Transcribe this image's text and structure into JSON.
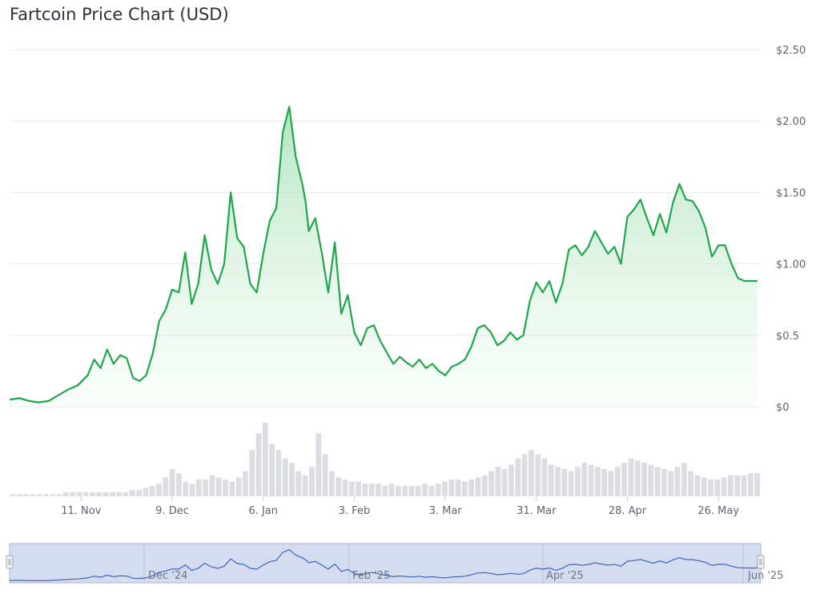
{
  "title": "Fartcoin Price Chart (USD)",
  "chart_data": {
    "type": "area",
    "title": "Fartcoin Price Chart (USD)",
    "xlabel": "",
    "ylabel": "",
    "ylim": [
      0,
      2.5
    ],
    "y_ticks": [
      {
        "value": 0,
        "label": "$0"
      },
      {
        "value": 0.5,
        "label": "$0.5"
      },
      {
        "value": 1.0,
        "label": "$1.00"
      },
      {
        "value": 1.5,
        "label": "$1.50"
      },
      {
        "value": 2.0,
        "label": "$2.00"
      },
      {
        "value": 2.5,
        "label": "$2.50"
      }
    ],
    "x_ticks": [
      {
        "date": "2024-11-11",
        "label": "11. Nov"
      },
      {
        "date": "2024-12-09",
        "label": "9. Dec"
      },
      {
        "date": "2025-01-06",
        "label": "6. Jan"
      },
      {
        "date": "2025-02-03",
        "label": "3. Feb"
      },
      {
        "date": "2025-03-03",
        "label": "3. Mar"
      },
      {
        "date": "2025-03-31",
        "label": "31. Mar"
      },
      {
        "date": "2025-04-28",
        "label": "28. Apr"
      },
      {
        "date": "2025-05-26",
        "label": "26. May"
      }
    ],
    "x_range": [
      "2024-10-20",
      "2025-06-08"
    ],
    "grid": true,
    "line_color": "#1ea84a",
    "series": [
      {
        "x": [
          "2024-10-20",
          "2024-10-23",
          "2024-10-26",
          "2024-10-29",
          "2024-11-01",
          "2024-11-04",
          "2024-11-07",
          "2024-11-10",
          "2024-11-13",
          "2024-11-15",
          "2024-11-17",
          "2024-11-19",
          "2024-11-21",
          "2024-11-23",
          "2024-11-25",
          "2024-11-27",
          "2024-11-29",
          "2024-12-01",
          "2024-12-03",
          "2024-12-05",
          "2024-12-07",
          "2024-12-09",
          "2024-12-11",
          "2024-12-13",
          "2024-12-15",
          "2024-12-17",
          "2024-12-19",
          "2024-12-21",
          "2024-12-23",
          "2024-12-25",
          "2024-12-27",
          "2024-12-29",
          "2024-12-31",
          "2025-01-02",
          "2025-01-04",
          "2025-01-06",
          "2025-01-08",
          "2025-01-10",
          "2025-01-12",
          "2025-01-14",
          "2025-01-16",
          "2025-01-18",
          "2025-01-19",
          "2025-01-20",
          "2025-01-22",
          "2025-01-24",
          "2025-01-26",
          "2025-01-28",
          "2025-01-30",
          "2025-02-01",
          "2025-02-03",
          "2025-02-05",
          "2025-02-07",
          "2025-02-09",
          "2025-02-11",
          "2025-02-13",
          "2025-02-15",
          "2025-02-17",
          "2025-02-19",
          "2025-02-21",
          "2025-02-23",
          "2025-02-25",
          "2025-02-27",
          "2025-03-01",
          "2025-03-03",
          "2025-03-05",
          "2025-03-07",
          "2025-03-09",
          "2025-03-11",
          "2025-03-13",
          "2025-03-15",
          "2025-03-17",
          "2025-03-19",
          "2025-03-21",
          "2025-03-23",
          "2025-03-25",
          "2025-03-27",
          "2025-03-29",
          "2025-03-31",
          "2025-04-02",
          "2025-04-04",
          "2025-04-06",
          "2025-04-08",
          "2025-04-10",
          "2025-04-12",
          "2025-04-14",
          "2025-04-16",
          "2025-04-18",
          "2025-04-20",
          "2025-04-22",
          "2025-04-24",
          "2025-04-26",
          "2025-04-28",
          "2025-04-30",
          "2025-05-02",
          "2025-05-04",
          "2025-05-06",
          "2025-05-08",
          "2025-05-10",
          "2025-05-12",
          "2025-05-14",
          "2025-05-16",
          "2025-05-18",
          "2025-05-20",
          "2025-05-22",
          "2025-05-24",
          "2025-05-26",
          "2025-05-28",
          "2025-05-30",
          "2025-06-01",
          "2025-06-03",
          "2025-06-05",
          "2025-06-07"
        ],
        "y": [
          0.05,
          0.06,
          0.04,
          0.03,
          0.04,
          0.08,
          0.12,
          0.15,
          0.22,
          0.33,
          0.27,
          0.4,
          0.3,
          0.36,
          0.34,
          0.2,
          0.18,
          0.22,
          0.37,
          0.6,
          0.68,
          0.82,
          0.8,
          1.08,
          0.72,
          0.86,
          1.2,
          0.96,
          0.86,
          1.0,
          1.5,
          1.18,
          1.12,
          0.86,
          0.8,
          1.07,
          1.3,
          1.39,
          1.92,
          2.1,
          1.75,
          1.56,
          1.44,
          1.23,
          1.32,
          1.08,
          0.8,
          1.15,
          0.65,
          0.78,
          0.52,
          0.43,
          0.55,
          0.57,
          0.46,
          0.38,
          0.3,
          0.35,
          0.31,
          0.28,
          0.33,
          0.27,
          0.3,
          0.25,
          0.22,
          0.28,
          0.3,
          0.33,
          0.42,
          0.55,
          0.57,
          0.52,
          0.43,
          0.46,
          0.52,
          0.47,
          0.5,
          0.74,
          0.87,
          0.8,
          0.88,
          0.73,
          0.86,
          1.1,
          1.13,
          1.06,
          1.12,
          1.23,
          1.15,
          1.07,
          1.12,
          1.0,
          1.33,
          1.38,
          1.45,
          1.32,
          1.2,
          1.35,
          1.22,
          1.43,
          1.56,
          1.45,
          1.44,
          1.37,
          1.25,
          1.05,
          1.13,
          1.13,
          1.0,
          0.9,
          0.88,
          0.88,
          0.88
        ]
      }
    ],
    "volume": [
      1,
      1,
      1,
      1,
      1,
      1,
      1,
      1,
      2,
      2,
      2,
      2,
      2,
      2,
      2,
      2,
      2,
      2,
      3,
      3,
      4,
      5,
      6,
      9,
      13,
      11,
      7,
      6,
      8,
      8,
      10,
      9,
      8,
      7,
      9,
      12,
      22,
      30,
      35,
      25,
      22,
      18,
      16,
      12,
      10,
      14,
      30,
      20,
      12,
      9,
      8,
      7,
      7,
      6,
      6,
      6,
      5,
      6,
      5,
      5,
      5,
      5,
      6,
      5,
      6,
      7,
      8,
      8,
      7,
      8,
      9,
      10,
      12,
      14,
      13,
      15,
      18,
      20,
      22,
      20,
      18,
      15,
      14,
      13,
      12,
      14,
      16,
      15,
      14,
      13,
      12,
      14,
      16,
      18,
      17,
      16,
      15,
      14,
      13,
      12,
      14,
      16,
      12,
      10,
      9,
      8,
      8,
      9,
      10,
      10,
      10,
      11,
      11
    ]
  },
  "navigator": {
    "labels": [
      "Dec '24",
      "Feb '25",
      "Apr '25",
      "Jun '25"
    ],
    "handle_left_icon": "grip-icon",
    "handle_right_icon": "grip-icon"
  },
  "colors": {
    "line": "#1ea84a",
    "area_top": "#bfe8c9",
    "grid": "#e6e8ec",
    "volume": "#dcdde2",
    "navigator_fill": "#d5dcef",
    "navigator_line": "#3b64c2"
  }
}
